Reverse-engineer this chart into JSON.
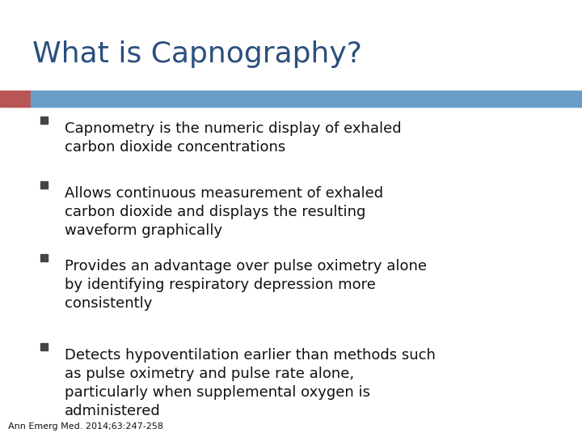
{
  "title": "What is Capnography?",
  "title_color": "#2B4F7E",
  "title_fontsize": 26,
  "background_color": "#FFFFFF",
  "header_bar_color": "#6A9DC8",
  "header_bar_red_color": "#B85555",
  "bullet_points": [
    "Capnometry is the numeric display of exhaled\ncarbon dioxide concentrations",
    "Allows continuous measurement of exhaled\ncarbon dioxide and displays the resulting\nwaveform graphically",
    "Provides an advantage over pulse oximetry alone\nby identifying respiratory depression more\nconsistently",
    "Detects hypoventilation earlier than methods such\nas pulse oximetry and pulse rate alone,\nparticularly when supplemental oxygen is\nadministered"
  ],
  "bullet_color": "#111111",
  "bullet_fontsize": 13,
  "footnote": "Ann Emerg Med. 2014;63:247-258",
  "footnote_fontsize": 8,
  "bullet_marker_color": "#444444"
}
